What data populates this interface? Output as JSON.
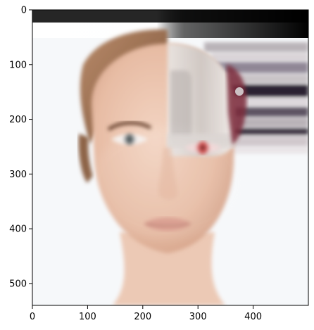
{
  "figure": {
    "image_description_icon": "woman-android-face-image",
    "x_axis": {
      "ticks": [
        0,
        100,
        200,
        300,
        400
      ],
      "range": [
        0,
        500
      ]
    },
    "y_axis": {
      "ticks": [
        0,
        100,
        200,
        300,
        400,
        500
      ],
      "range": [
        0,
        540
      ],
      "inverted": true
    },
    "colors": {
      "frame": "#000000",
      "background": "#f6f8fa",
      "skin": "#e9c2ab",
      "hair": "#9a6d4e",
      "metal": "#d9d5d2",
      "glow_eye": "#d84a4a",
      "streak_dark": "#2b2430",
      "streak_light": "#c8c2c6"
    }
  }
}
